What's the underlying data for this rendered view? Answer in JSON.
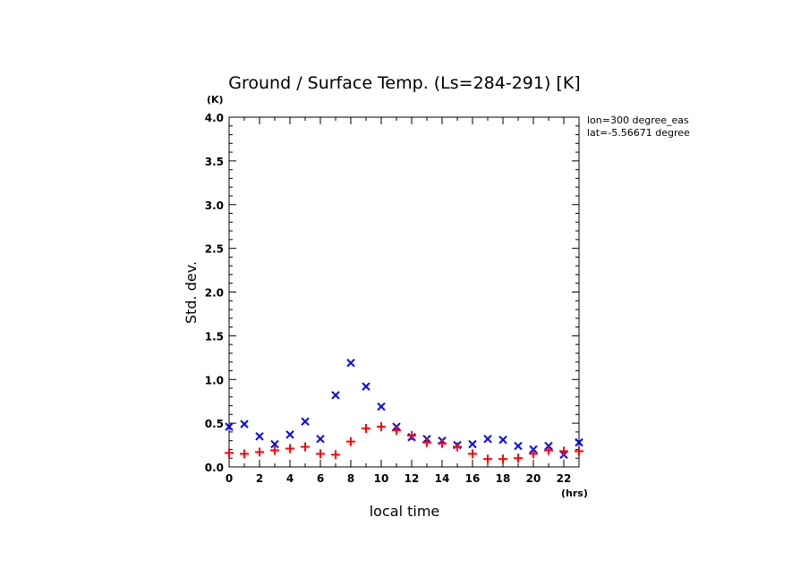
{
  "chart_data": {
    "type": "scatter",
    "title": "Ground / Surface Temp. (Ls=284-291) [K]",
    "xlabel": "local time",
    "ylabel": "Std. dev.",
    "x_unit": "(hrs)",
    "y_unit": "(K)",
    "xlim": [
      0,
      23
    ],
    "ylim": [
      0,
      4.0
    ],
    "xticks": [
      "0",
      "2",
      "4",
      "6",
      "8",
      "10",
      "12",
      "14",
      "16",
      "18",
      "20",
      "22"
    ],
    "yticks": [
      "0.0",
      "0.5",
      "1.0",
      "1.5",
      "2.0",
      "2.5",
      "3.0",
      "3.5",
      "4.0"
    ],
    "annotations": [
      "lon=300 degree_eas",
      "lat=-5.56671 degree"
    ],
    "grid": false,
    "x": [
      0,
      1,
      2,
      3,
      4,
      5,
      6,
      7,
      8,
      9,
      10,
      11,
      12,
      13,
      14,
      15,
      16,
      17,
      18,
      19,
      20,
      21,
      22,
      23
    ],
    "series": [
      {
        "marker": "x",
        "color": "#0000ff",
        "values": [
          0.46,
          0.49,
          0.35,
          0.26,
          0.37,
          0.52,
          0.32,
          0.82,
          1.19,
          0.92,
          0.69,
          0.46,
          0.34,
          0.32,
          0.3,
          0.25,
          0.26,
          0.32,
          0.31,
          0.24,
          0.2,
          0.24,
          0.14,
          0.28
        ]
      },
      {
        "marker": "+",
        "color": "#ff0000",
        "values": [
          0.16,
          0.15,
          0.17,
          0.19,
          0.21,
          0.23,
          0.15,
          0.14,
          0.29,
          0.44,
          0.46,
          0.42,
          0.36,
          0.28,
          0.27,
          0.23,
          0.15,
          0.09,
          0.09,
          0.1,
          0.15,
          0.19,
          0.18,
          0.18
        ]
      }
    ]
  }
}
